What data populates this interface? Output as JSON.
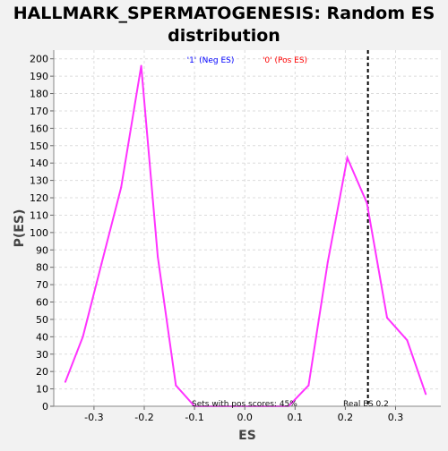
{
  "chart_data": {
    "type": "line",
    "title": "HALLMARK_SPERMATOGENESIS: Random ES distribution",
    "title_lines": [
      "HALLMARK_SPERMATOGENESIS: Random ES",
      "distribution"
    ],
    "xlabel": "ES",
    "ylabel": "P(ES)",
    "xlim": [
      -0.38,
      0.39
    ],
    "ylim": [
      0,
      205
    ],
    "x_ticks": [
      -0.3,
      -0.2,
      -0.1,
      0.0,
      0.1,
      0.2,
      0.3
    ],
    "x_tick_labels": [
      "-0.3",
      "-0.2",
      "-0.1",
      "0.0",
      "0.1",
      "0.2",
      "0.3"
    ],
    "y_ticks": [
      0,
      10,
      20,
      30,
      40,
      50,
      60,
      70,
      80,
      90,
      100,
      110,
      120,
      130,
      140,
      150,
      160,
      170,
      180,
      190,
      200
    ],
    "grid": true,
    "legend": {
      "placement": "top",
      "entries": [
        {
          "label": "'1' (Neg ES)",
          "color": "#0000ff"
        },
        {
          "label": "'0' (Pos ES)",
          "color": "#ff0000"
        }
      ]
    },
    "series": [
      {
        "color": "#ff33ff",
        "x": [
          -0.357,
          -0.322,
          -0.285,
          -0.246,
          -0.206,
          -0.173,
          -0.137,
          -0.1,
          -0.063,
          -0.025,
          0.012,
          0.05,
          0.087,
          0.127,
          0.165,
          0.204,
          0.243,
          0.283,
          0.323,
          0.36
        ],
        "y": [
          14,
          40,
          82,
          126,
          196,
          86,
          12,
          0,
          0,
          0,
          0,
          0,
          0,
          12,
          83,
          143,
          117,
          51,
          38,
          7
        ]
      }
    ],
    "reference_line": {
      "x": 0.245,
      "style": "dashed",
      "color": "#000000"
    },
    "annotations": {
      "pos_scores": "Sets with pos scores: 45%",
      "real_es": "Real ES 0.2"
    },
    "colors": {
      "background": "#f2f2f2",
      "plot_background": "#ffffff",
      "grid": "#d9d9d9",
      "line": "#ff33ff"
    }
  }
}
